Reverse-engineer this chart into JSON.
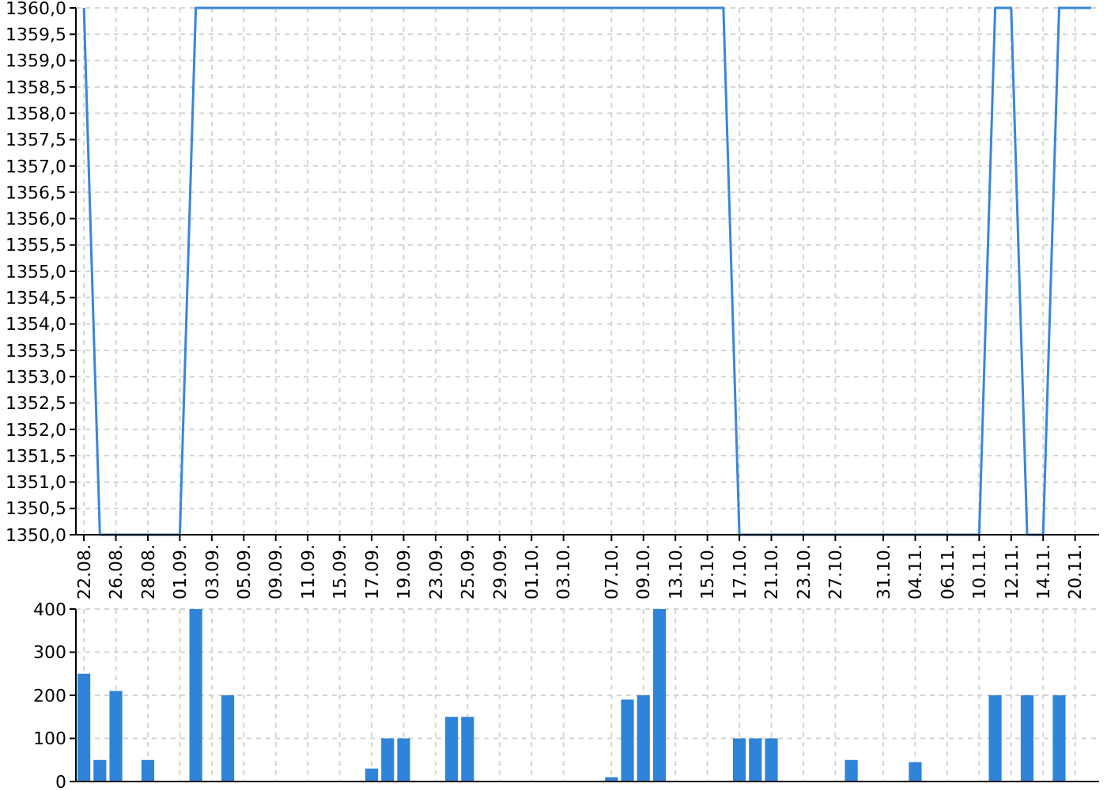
{
  "chart_data": [
    {
      "type": "line",
      "categories": [
        "22.08.",
        null,
        "26.08.",
        null,
        "28.08.",
        null,
        "01.09.",
        null,
        "03.09.",
        null,
        "05.09.",
        null,
        "09.09.",
        null,
        "11.09.",
        null,
        "15.09.",
        null,
        "17.09.",
        null,
        "19.09.",
        null,
        "23.09.",
        null,
        "25.09.",
        null,
        "29.09.",
        null,
        "01.10.",
        null,
        "03.10.",
        null,
        null,
        "07.10.",
        null,
        "09.10.",
        null,
        "13.10.",
        null,
        "15.10.",
        null,
        "17.10.",
        null,
        "21.10.",
        null,
        "23.10.",
        null,
        "27.10.",
        null,
        null,
        "31.10.",
        null,
        "04.11.",
        null,
        "06.11.",
        null,
        "10.11.",
        null,
        "12.11.",
        null,
        "14.11.",
        null,
        "20.11.",
        null
      ],
      "values": [
        1360,
        1350,
        1350,
        1350,
        1350,
        1350,
        1350,
        1360,
        1360,
        1360,
        1360,
        1360,
        1360,
        1360,
        1360,
        1360,
        1360,
        1360,
        1360,
        1360,
        1360,
        1360,
        1360,
        1360,
        1360,
        1360,
        1360,
        1360,
        1360,
        1360,
        1360,
        1360,
        1360,
        1360,
        1360,
        1360,
        1360,
        1360,
        1360,
        1360,
        1360,
        1350,
        1350,
        1350,
        1350,
        1350,
        1350,
        1350,
        1350,
        1350,
        1350,
        1350,
        1350,
        1350,
        1350,
        1350,
        1350,
        1360,
        1360,
        1350,
        1350,
        1360,
        1360,
        1360
      ],
      "color": "#3a86d9",
      "ylim": [
        1350,
        1360
      ],
      "yticks": [
        {
          "value": 1350,
          "label": "1350,0"
        },
        {
          "value": 1350.5,
          "label": "1350,5"
        },
        {
          "value": 1351,
          "label": "1351,0"
        },
        {
          "value": 1351.5,
          "label": "1351,5"
        },
        {
          "value": 1352,
          "label": "1352,0"
        },
        {
          "value": 1352.5,
          "label": "1352,5"
        },
        {
          "value": 1353,
          "label": "1353,0"
        },
        {
          "value": 1353.5,
          "label": "1353,5"
        },
        {
          "value": 1354,
          "label": "1354,0"
        },
        {
          "value": 1354.5,
          "label": "1354,5"
        },
        {
          "value": 1355,
          "label": "1355,0"
        },
        {
          "value": 1355.5,
          "label": "1355,5"
        },
        {
          "value": 1356,
          "label": "1356,0"
        },
        {
          "value": 1356.5,
          "label": "1356,5"
        },
        {
          "value": 1357,
          "label": "1357,0"
        },
        {
          "value": 1357.5,
          "label": "1357,5"
        },
        {
          "value": 1358,
          "label": "1358,0"
        },
        {
          "value": 1358.5,
          "label": "1358,5"
        },
        {
          "value": 1359,
          "label": "1359,0"
        },
        {
          "value": 1359.5,
          "label": "1359,5"
        },
        {
          "value": 1360,
          "label": "1360,0"
        }
      ],
      "grid": true
    },
    {
      "type": "bar",
      "categories": [
        "22.08.",
        null,
        "26.08.",
        null,
        "28.08.",
        null,
        "01.09.",
        null,
        "03.09.",
        null,
        "05.09.",
        null,
        "09.09.",
        null,
        "11.09.",
        null,
        "15.09.",
        null,
        "17.09.",
        null,
        "19.09.",
        null,
        "23.09.",
        null,
        "25.09.",
        null,
        "29.09.",
        null,
        "01.10.",
        null,
        "03.10.",
        null,
        null,
        "07.10.",
        null,
        "09.10.",
        null,
        "13.10.",
        null,
        "15.10.",
        null,
        "17.10.",
        null,
        "21.10.",
        null,
        "23.10.",
        null,
        "27.10.",
        null,
        null,
        "31.10.",
        null,
        "04.11.",
        null,
        "06.11.",
        null,
        "10.11.",
        null,
        "12.11.",
        null,
        "14.11.",
        null,
        "20.11.",
        null
      ],
      "values": [
        250,
        50,
        210,
        null,
        50,
        null,
        null,
        400,
        null,
        200,
        null,
        null,
        null,
        null,
        null,
        null,
        null,
        null,
        30,
        100,
        100,
        null,
        null,
        150,
        150,
        null,
        null,
        null,
        null,
        null,
        null,
        null,
        null,
        10,
        190,
        200,
        400,
        null,
        null,
        null,
        null,
        100,
        100,
        100,
        null,
        null,
        null,
        null,
        50,
        null,
        null,
        null,
        45,
        null,
        null,
        null,
        null,
        200,
        null,
        200,
        null,
        200,
        null,
        null
      ],
      "color": "#2f83d8",
      "ylim": [
        0,
        400
      ],
      "yticks": [
        0,
        100,
        200,
        300,
        400
      ],
      "grid": true,
      "tick_labels": "y"
    }
  ]
}
